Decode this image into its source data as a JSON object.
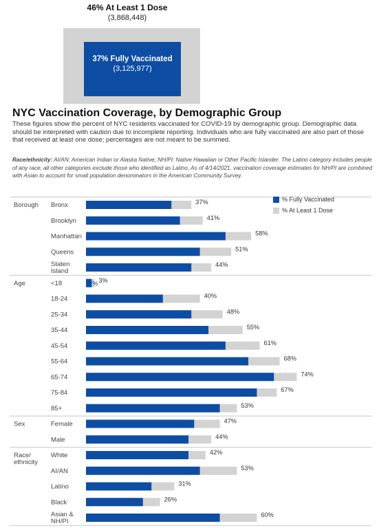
{
  "summary": {
    "at_least_one_label": "46% At Least 1 Dose",
    "at_least_one_count": "(3,868,448)",
    "fully_label": "37% Fully Vaccinated",
    "fully_count": "(3,125,977)"
  },
  "title": "NYC Vaccination Coverage, by Demographic Group",
  "description": "These figures show the percent of NYC residents vaccinated for COVID-19 by demographic group. Demographic data should be interpreted with caution due to incomplete reporting. Individuals who are fully vaccinated are also part of those that received at least one dose; percentages are not meant to be summed.",
  "note_label": "Race/ethnicity:",
  "note_text": "AI/AN: American Indian or Alaska Native; NH/PI: Native Hawaiian or Other Pacific Islander. The Latino category includes people of any race; all other categories exclude those who identified as Latino. As of 4/14/2021, vaccination coverage estimates for NH/PI are combined with Asian to account for small population denominators in the American Community Survey.",
  "colors": {
    "fully": "#0e4da4",
    "one_dose": "#d3d3d3"
  },
  "chart_data": {
    "type": "bar",
    "orientation": "horizontal",
    "legend": {
      "position": "top-right"
    },
    "series": [
      {
        "name": "% Fully Vaccinated",
        "key": "fully"
      },
      {
        "name": "% At Least 1 Dose",
        "key": "one_dose"
      }
    ],
    "xlim": [
      0,
      100
    ],
    "unit": "%",
    "groups": [
      {
        "name": "Borough",
        "rows": [
          {
            "label": "Bronx",
            "fully": 30,
            "one_dose": 37
          },
          {
            "label": "Brooklyn",
            "fully": 33,
            "one_dose": 41
          },
          {
            "label": "Manhattan",
            "fully": 49,
            "one_dose": 58
          },
          {
            "label": "Queens",
            "fully": 40,
            "one_dose": 51
          },
          {
            "label": "Staten Island",
            "lines": [
              "Staten",
              "Island"
            ],
            "fully": 37,
            "one_dose": 44
          }
        ]
      },
      {
        "name": "Age",
        "rows": [
          {
            "label": "<18",
            "fully": 2,
            "one_dose": 3
          },
          {
            "label": "18-24",
            "fully": 27,
            "one_dose": 40
          },
          {
            "label": "25-34",
            "fully": 37,
            "one_dose": 48
          },
          {
            "label": "35-44",
            "fully": 43,
            "one_dose": 55
          },
          {
            "label": "45-54",
            "fully": 49,
            "one_dose": 61
          },
          {
            "label": "55-64",
            "fully": 57,
            "one_dose": 68
          },
          {
            "label": "65-74",
            "fully": 66,
            "one_dose": 74
          },
          {
            "label": "75-84",
            "fully": 60,
            "one_dose": 67
          },
          {
            "label": "85+",
            "fully": 47,
            "one_dose": 53
          }
        ]
      },
      {
        "name": "Sex",
        "rows": [
          {
            "label": "Female",
            "fully": 38,
            "one_dose": 47
          },
          {
            "label": "Male",
            "fully": 36,
            "one_dose": 44
          }
        ]
      },
      {
        "name": "Race/ ethnicity",
        "lines": [
          "Race/",
          "ethnicity"
        ],
        "rows": [
          {
            "label": "White",
            "fully": 36,
            "one_dose": 42
          },
          {
            "label": "AI/AN",
            "fully": 40,
            "one_dose": 53
          },
          {
            "label": "Latino",
            "fully": 23,
            "one_dose": 31
          },
          {
            "label": "Black",
            "fully": 20,
            "one_dose": 26
          },
          {
            "label": "Asian & NH/PI",
            "lines": [
              "Asian &",
              "NH/PI"
            ],
            "fully": 47,
            "one_dose": 60
          }
        ]
      }
    ]
  }
}
